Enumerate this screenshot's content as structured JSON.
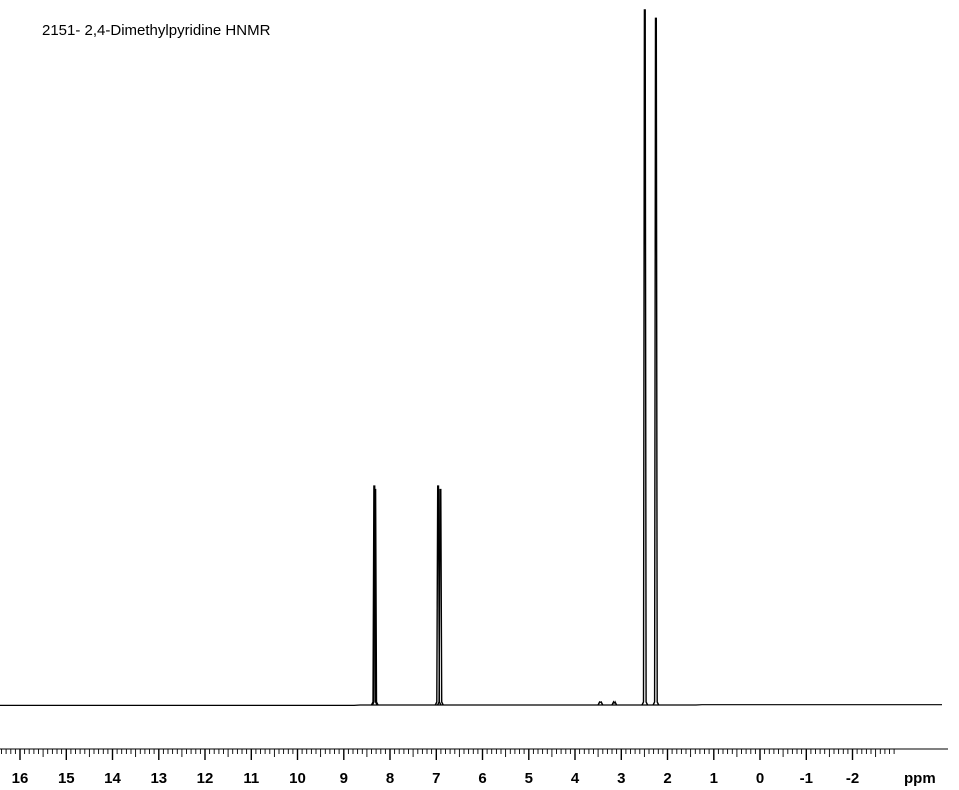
{
  "chart_data": {
    "type": "line",
    "title": "2151- 2,4-Dimethylpyridine HNMR",
    "xlabel": "ppm",
    "ylabel": "",
    "xlim": [
      16.6,
      -2.95
    ],
    "x_reversed": true,
    "grid": false,
    "legend": "none",
    "x_tick_labels": [
      "16",
      "15",
      "14",
      "13",
      "12",
      "11",
      "10",
      "9",
      "8",
      "7",
      "6",
      "5",
      "4",
      "3",
      "2",
      "1",
      "0",
      "-1",
      "-2"
    ],
    "x_tick_values": [
      16,
      15,
      14,
      13,
      12,
      11,
      10,
      9,
      8,
      7,
      6,
      5,
      4,
      3,
      2,
      1,
      0,
      -1,
      -2
    ],
    "ylim": [
      0,
      100
    ],
    "series": [
      {
        "peaks": [
          {
            "shift": 8.34,
            "height": 31.5
          },
          {
            "shift": 8.32,
            "height": 31.0
          },
          {
            "shift": 6.96,
            "height": 31.5
          },
          {
            "shift": 6.91,
            "height": 31.0
          },
          {
            "shift": 3.45,
            "height": 0.4
          },
          {
            "shift": 3.15,
            "height": 0.3
          },
          {
            "shift": 2.49,
            "height": 100
          },
          {
            "shift": 2.25,
            "height": 98.8
          }
        ]
      }
    ],
    "colors": {
      "line": "#000000",
      "background": "#ffffff"
    }
  }
}
